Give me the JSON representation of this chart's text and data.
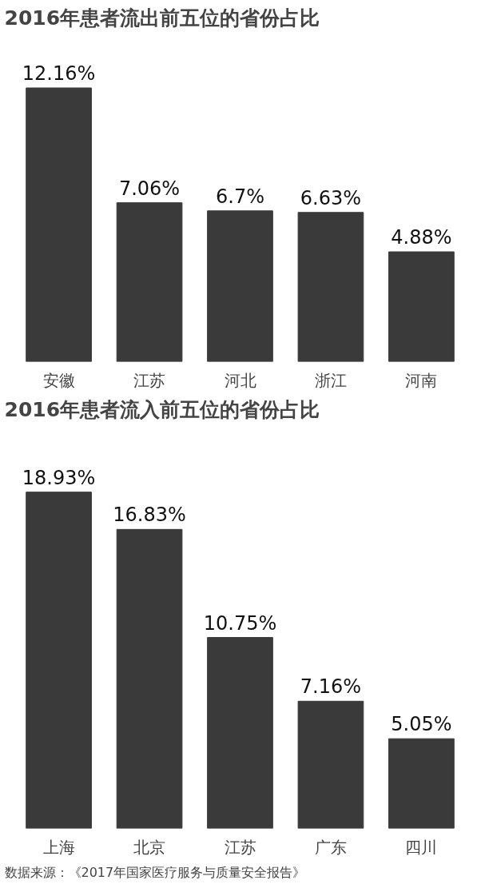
{
  "chart_data": [
    {
      "type": "bar",
      "title": "2016年患者流出前五位的省份占比",
      "categories": [
        "安徽",
        "江苏",
        "河北",
        "浙江",
        "河南"
      ],
      "values": [
        12.16,
        7.06,
        6.7,
        6.63,
        4.88
      ],
      "value_labels": [
        "12.16%",
        "7.06%",
        "6.7%",
        "6.63%",
        "4.88%"
      ],
      "color": "#3a3a3a"
    },
    {
      "type": "bar",
      "title": "2016年患者流入前五位的省份占比",
      "categories": [
        "上海",
        "北京",
        "江苏",
        "广东",
        "四川"
      ],
      "values": [
        18.93,
        16.83,
        10.75,
        7.16,
        5.05
      ],
      "value_labels": [
        "18.93%",
        "16.83%",
        "10.75%",
        "7.16%",
        "5.05%"
      ],
      "color": "#3a3a3a",
      "annotations": [
        "数据来源：《2017年国家医疗服务与质量安全报告》"
      ]
    }
  ]
}
